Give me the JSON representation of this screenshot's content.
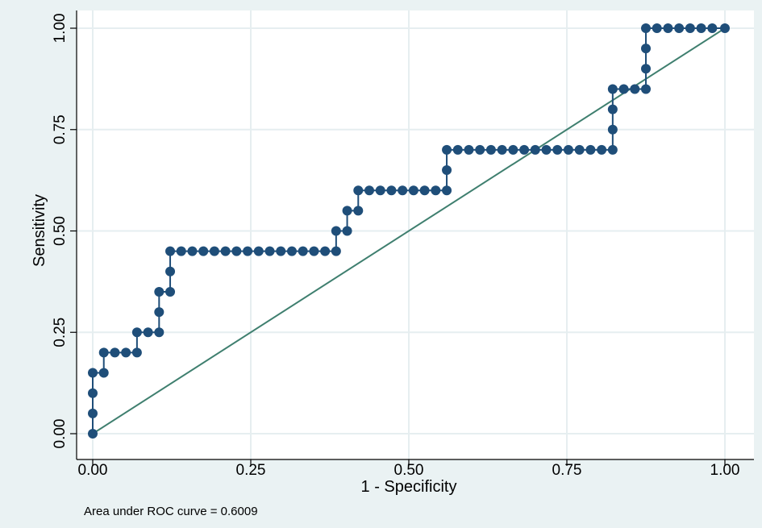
{
  "chart_data": {
    "type": "line",
    "title": "",
    "xlabel": "1 - Specificity",
    "ylabel": "Sensitivity",
    "xlim": [
      0,
      1
    ],
    "ylim": [
      0,
      1
    ],
    "grid": true,
    "x_ticks": [
      "0.00",
      "0.25",
      "0.50",
      "0.75",
      "1.00"
    ],
    "y_ticks": [
      "0.00",
      "0.25",
      "0.50",
      "0.75",
      "1.00"
    ],
    "note": "Area under ROC curve = 0.6009",
    "colors": {
      "roc": "#1f4e79",
      "reference": "#3f7f6f",
      "grid": "#e6eef0",
      "background": "#eaf2f3",
      "plot": "#ffffff"
    },
    "series": [
      {
        "type": "line-with-markers",
        "points": [
          [
            0,
            0
          ],
          [
            0,
            0.05
          ],
          [
            0,
            0.1
          ],
          [
            0,
            0.15
          ],
          [
            0.0175,
            0.15
          ],
          [
            0.0175,
            0.2
          ],
          [
            0.035,
            0.2
          ],
          [
            0.0525,
            0.2
          ],
          [
            0.07,
            0.2
          ],
          [
            0.07,
            0.25
          ],
          [
            0.0875,
            0.25
          ],
          [
            0.105,
            0.25
          ],
          [
            0.105,
            0.3
          ],
          [
            0.105,
            0.35
          ],
          [
            0.1225,
            0.35
          ],
          [
            0.1225,
            0.4
          ],
          [
            0.1225,
            0.45
          ],
          [
            0.14,
            0.45
          ],
          [
            0.1575,
            0.45
          ],
          [
            0.175,
            0.45
          ],
          [
            0.1925,
            0.45
          ],
          [
            0.21,
            0.45
          ],
          [
            0.2275,
            0.45
          ],
          [
            0.245,
            0.45
          ],
          [
            0.2625,
            0.45
          ],
          [
            0.28,
            0.45
          ],
          [
            0.2975,
            0.45
          ],
          [
            0.315,
            0.45
          ],
          [
            0.3325,
            0.45
          ],
          [
            0.35,
            0.45
          ],
          [
            0.3675,
            0.45
          ],
          [
            0.385,
            0.45
          ],
          [
            0.385,
            0.5
          ],
          [
            0.4025,
            0.5
          ],
          [
            0.4025,
            0.55
          ],
          [
            0.42,
            0.55
          ],
          [
            0.42,
            0.6
          ],
          [
            0.4375,
            0.6
          ],
          [
            0.455,
            0.6
          ],
          [
            0.4725,
            0.6
          ],
          [
            0.49,
            0.6
          ],
          [
            0.5075,
            0.6
          ],
          [
            0.525,
            0.6
          ],
          [
            0.5425,
            0.6
          ],
          [
            0.56,
            0.6
          ],
          [
            0.56,
            0.65
          ],
          [
            0.56,
            0.7
          ],
          [
            0.5775,
            0.7
          ],
          [
            0.595,
            0.7
          ],
          [
            0.6125,
            0.7
          ],
          [
            0.63,
            0.7
          ],
          [
            0.6475,
            0.7
          ],
          [
            0.665,
            0.7
          ],
          [
            0.6825,
            0.7
          ],
          [
            0.7,
            0.7
          ],
          [
            0.7175,
            0.7
          ],
          [
            0.735,
            0.7
          ],
          [
            0.7525,
            0.7
          ],
          [
            0.77,
            0.7
          ],
          [
            0.7875,
            0.7
          ],
          [
            0.805,
            0.7
          ],
          [
            0.8225,
            0.7
          ],
          [
            0.8225,
            0.75
          ],
          [
            0.8225,
            0.8
          ],
          [
            0.8225,
            0.85
          ],
          [
            0.84,
            0.85
          ],
          [
            0.8575,
            0.85
          ],
          [
            0.875,
            0.85
          ],
          [
            0.875,
            0.9
          ],
          [
            0.875,
            0.95
          ],
          [
            0.875,
            1.0
          ],
          [
            0.8925,
            1.0
          ],
          [
            0.91,
            1.0
          ],
          [
            0.9275,
            1.0
          ],
          [
            0.945,
            1.0
          ],
          [
            0.9625,
            1.0
          ],
          [
            0.98,
            1.0
          ],
          [
            1.0,
            1.0
          ]
        ]
      },
      {
        "type": "reference-line",
        "points": [
          [
            0,
            0
          ],
          [
            1,
            1
          ]
        ]
      }
    ]
  }
}
